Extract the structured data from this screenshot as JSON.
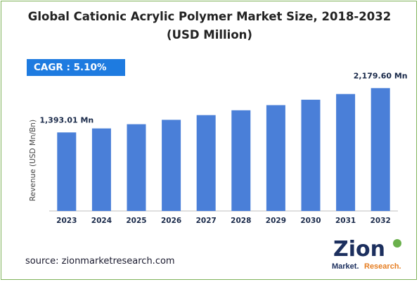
{
  "title_line1": "Global Cationic Acrylic Polymer Market Size, 2018-2032",
  "title_line2": "(USD Million)",
  "cagr": {
    "label": "CAGR :",
    "value": "5.10%"
  },
  "source": "source: zionmarketresearch.com",
  "logo": {
    "brand": "Zion",
    "sub_left": "Market.",
    "sub_right": "Research."
  },
  "colors": {
    "bar": "#4a7fd8",
    "cagr_bg": "#1e7be0",
    "border": "#7fb35a"
  },
  "chart_data": {
    "type": "bar",
    "categories": [
      "2023",
      "2024",
      "2025",
      "2026",
      "2027",
      "2028",
      "2029",
      "2030",
      "2031",
      "2032"
    ],
    "values": [
      1393.01,
      1464.0,
      1538.7,
      1617.1,
      1699.6,
      1786.3,
      1877.4,
      1973.1,
      2073.7,
      2179.6
    ],
    "data_labels": [
      {
        "index": 0,
        "text": "1,393.01 Mn"
      },
      {
        "index": 9,
        "text": "2,179.60 Mn"
      }
    ],
    "ylabel": "Revenue (USD Mn/Bn)",
    "xlabel": "",
    "ylim": [
      0,
      2320
    ],
    "grid": false
  }
}
